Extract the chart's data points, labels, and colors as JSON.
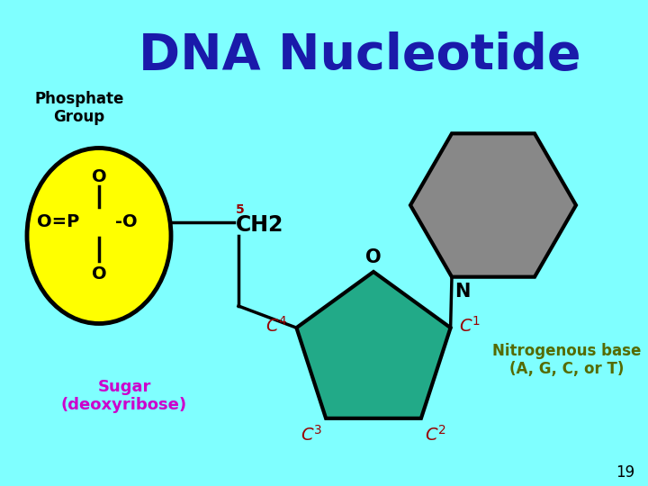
{
  "bg_color": "#7fffff",
  "title": "DNA Nucleotide",
  "title_color": "#1a1aaa",
  "title_fontsize": 40,
  "phosphate_label": "Phosphate\nGroup",
  "phosphate_label_color": "#000000",
  "phosphate_ellipse_color": "#ffff00",
  "phosphate_ellipse_edge": "#000000",
  "sugar_label": "Sugar\n(deoxyribose)",
  "sugar_label_color": "#cc00cc",
  "sugar_color": "#22aa88",
  "sugar_edge": "#000000",
  "hex_color": "#888888",
  "hex_edge": "#000000",
  "nitro_base_label": "Nitrogenous base\n(A, G, C, or T)",
  "nitro_base_color": "#556b00",
  "page_number": "19",
  "c_label_color": "#990000",
  "dark_color": "#000000"
}
